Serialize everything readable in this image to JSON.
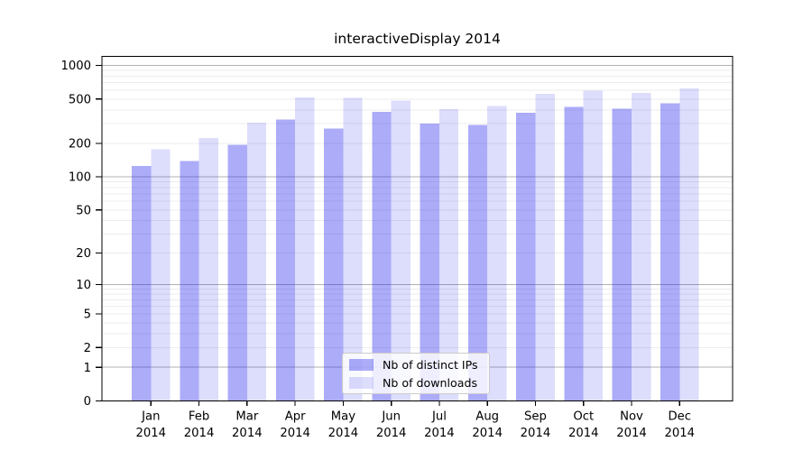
{
  "chart_data": {
    "type": "bar",
    "title": "interactiveDisplay 2014",
    "categories": [
      "Jan",
      "Feb",
      "Mar",
      "Apr",
      "May",
      "Jun",
      "Jul",
      "Aug",
      "Sep",
      "Oct",
      "Nov",
      "Dec"
    ],
    "x_year_label": "2014",
    "series": [
      {
        "name": "Nb of distinct IPs",
        "color": "rgba(25,25,235,0.36)",
        "values": [
          125,
          139,
          194,
          326,
          273,
          383,
          302,
          293,
          376,
          426,
          408,
          459
        ]
      },
      {
        "name": "Nb of downloads",
        "color": "rgba(25,25,235,0.15)",
        "values": [
          177,
          224,
          306,
          515,
          513,
          486,
          405,
          432,
          556,
          592,
          566,
          621
        ]
      }
    ],
    "yscale": "log1p",
    "yticks": [
      0,
      1,
      2,
      5,
      10,
      20,
      50,
      100,
      200,
      500,
      1000
    ],
    "ylim": [
      0,
      1250
    ],
    "grid": true,
    "legend_position": "inside-bottom-center",
    "colors": {
      "major_grid": "#b2b2b2",
      "minor_grid": "#ececec",
      "axis": "#000000",
      "text": "#000000",
      "background": "#ffffff"
    }
  }
}
